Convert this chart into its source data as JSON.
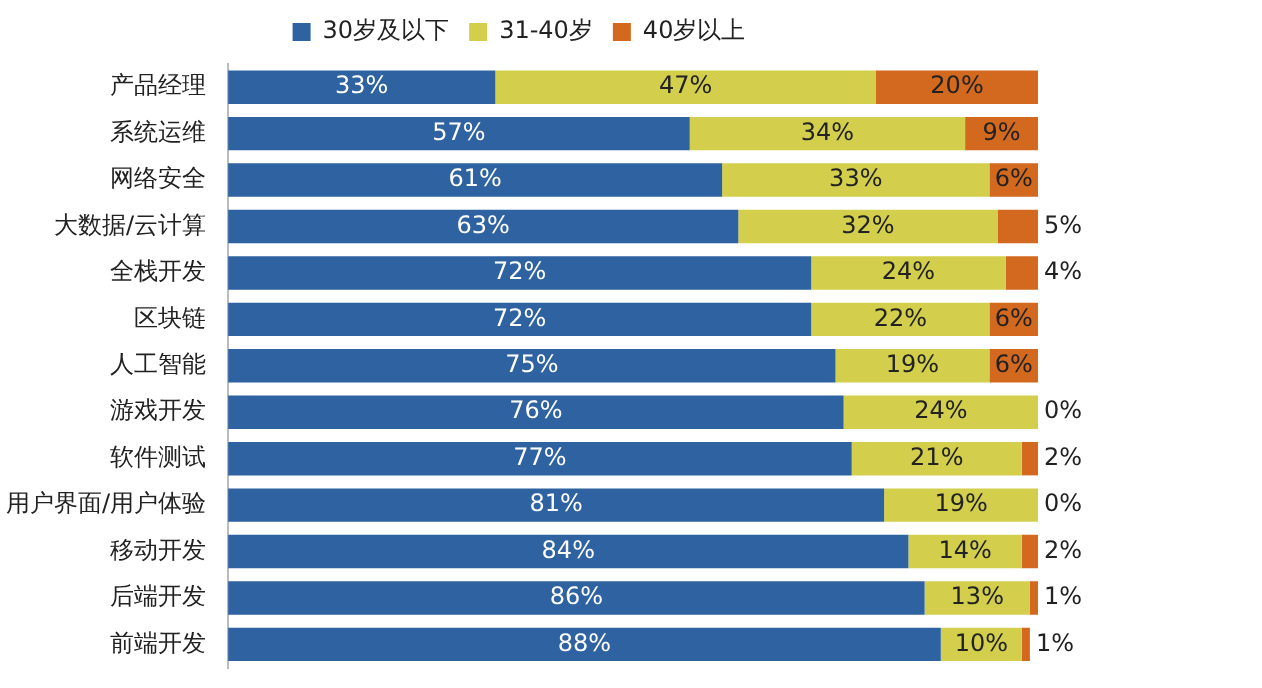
{
  "chart_data": {
    "type": "bar",
    "orientation": "horizontal",
    "stacked": true,
    "legend": "top",
    "grid": false,
    "categories": [
      "产品经理",
      "系统运维",
      "网络安全",
      "大数据/云计算",
      "全栈开发",
      "区块链",
      "人工智能",
      "游戏开发",
      "软件测试",
      "用户界面/用户体验",
      "移动开发",
      "后端开发",
      "前端开发"
    ],
    "series": [
      {
        "name": "30岁及以下",
        "color": "#2e62a0",
        "values": [
          33,
          57,
          61,
          63,
          72,
          72,
          75,
          76,
          77,
          81,
          84,
          86,
          88
        ],
        "value_labels": [
          "33%",
          "57%",
          "61%",
          "63%",
          "72%",
          "72%",
          "75%",
          "76%",
          "77%",
          "81%",
          "84%",
          "86%",
          "88%"
        ]
      },
      {
        "name": "31-40岁",
        "color": "#d3cf4c",
        "values": [
          47,
          34,
          33,
          32,
          24,
          22,
          19,
          24,
          21,
          19,
          14,
          13,
          10
        ],
        "value_labels": [
          "47%",
          "34%",
          "33%",
          "32%",
          "24%",
          "22%",
          "19%",
          "24%",
          "21%",
          "19%",
          "14%",
          "13%",
          "10%"
        ]
      },
      {
        "name": "40岁以上",
        "color": "#d2691e",
        "values": [
          20,
          9,
          6,
          5,
          4,
          6,
          6,
          0,
          2,
          0,
          2,
          1,
          1
        ],
        "value_labels": [
          "20%",
          "9%",
          "6%",
          "5%",
          "4%",
          "6%",
          "6%",
          "0%",
          "2%",
          "0%",
          "2%",
          "1%",
          "1%"
        ]
      }
    ]
  }
}
